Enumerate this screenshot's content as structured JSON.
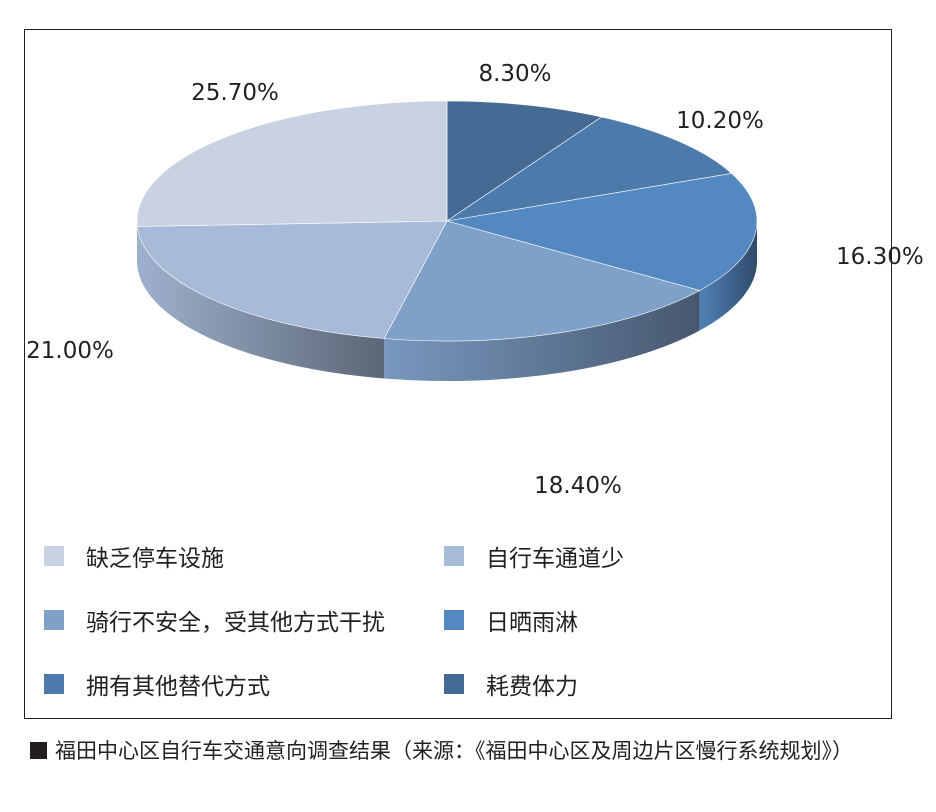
{
  "chart_data": {
    "type": "pie",
    "title": "",
    "start_from": "top",
    "direction": "clockwise",
    "slices": [
      {
        "label": "耗费体力",
        "value": 8.3,
        "display": "8.30%",
        "color": "#456a93"
      },
      {
        "label": "拥有其他替代方式",
        "value": 10.2,
        "display": "10.20%",
        "color": "#4b7aab"
      },
      {
        "label": "日晒雨淋",
        "value": 16.3,
        "display": "16.30%",
        "color": "#5488c0"
      },
      {
        "label": "骑行不安全，受其他方式干扰",
        "value": 18.4,
        "display": "18.40%",
        "color": "#7fa0c9"
      },
      {
        "label": "自行车通道少",
        "value": 21.0,
        "display": "21.00%",
        "color": "#a7bad8"
      },
      {
        "label": "缺乏停车设施",
        "value": 25.7,
        "display": "25.70%",
        "color": "#c8d2e2"
      }
    ],
    "legend_order": [
      "缺乏停车设施",
      "自行车通道少",
      "骑行不安全，受其他方式干扰",
      "日晒雨淋",
      "拥有其他替代方式",
      "耗费体力"
    ],
    "legend_placement": "bottom"
  },
  "caption": "福田中心区自行车交通意向调查结果（来源：《福田中心区及周边片区慢行系统规划》）"
}
